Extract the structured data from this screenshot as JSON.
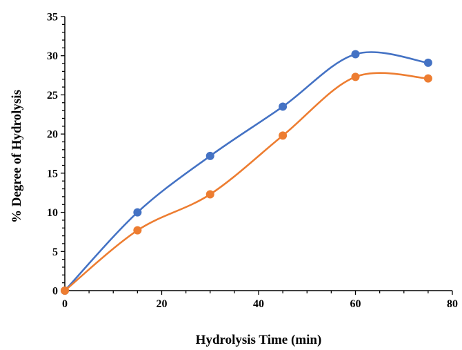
{
  "chart_data": {
    "type": "line",
    "title": "",
    "xlabel": "Hydrolysis Time (min)",
    "ylabel": "% Degree of Hydrolysis",
    "xlim": [
      0,
      80
    ],
    "ylim": [
      0,
      35
    ],
    "x_ticks": [
      0,
      20,
      40,
      60,
      80
    ],
    "y_ticks": [
      0,
      5,
      10,
      15,
      20,
      25,
      30,
      35
    ],
    "grid": false,
    "legend": "none",
    "x": [
      0,
      15,
      30,
      45,
      60,
      75
    ],
    "series": [
      {
        "color": "#4472C4",
        "values": [
          0,
          10.0,
          17.2,
          23.5,
          30.2,
          29.1
        ]
      },
      {
        "color": "#ED7D31",
        "values": [
          0,
          7.7,
          12.3,
          19.8,
          27.3,
          27.1
        ]
      }
    ]
  }
}
